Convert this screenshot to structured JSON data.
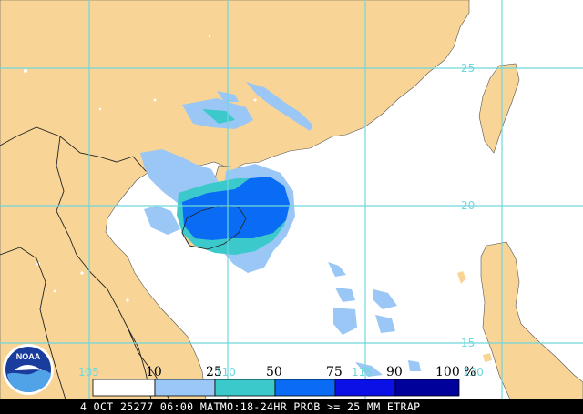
{
  "map": {
    "land_color": "#f8d597",
    "sea_color": "#ffffff",
    "grid_color": "#6fd7dc",
    "border_color": "#222222"
  },
  "grid_labels": {
    "lat_25": "25",
    "lat_20": "20",
    "lat_15": "15",
    "lon_105": "105",
    "lon_110": "110",
    "lon_115": "115",
    "lon_120": "120"
  },
  "legend": {
    "labels": [
      "10",
      "25",
      "50",
      "75",
      "90",
      "100 %"
    ],
    "bins": [
      {
        "color": "#ffffff"
      },
      {
        "color": "#9ac7f5"
      },
      {
        "color": "#3cc9cb"
      },
      {
        "color": "#0a6cf5"
      },
      {
        "color": "#0a10e6"
      },
      {
        "color": "#00009a"
      }
    ]
  },
  "footer": {
    "text": "4 OCT 25277 06:00 MATMO:18-24HR PROB >= 25 MM ETRAP"
  },
  "logo": {
    "text": "NOAA"
  }
}
